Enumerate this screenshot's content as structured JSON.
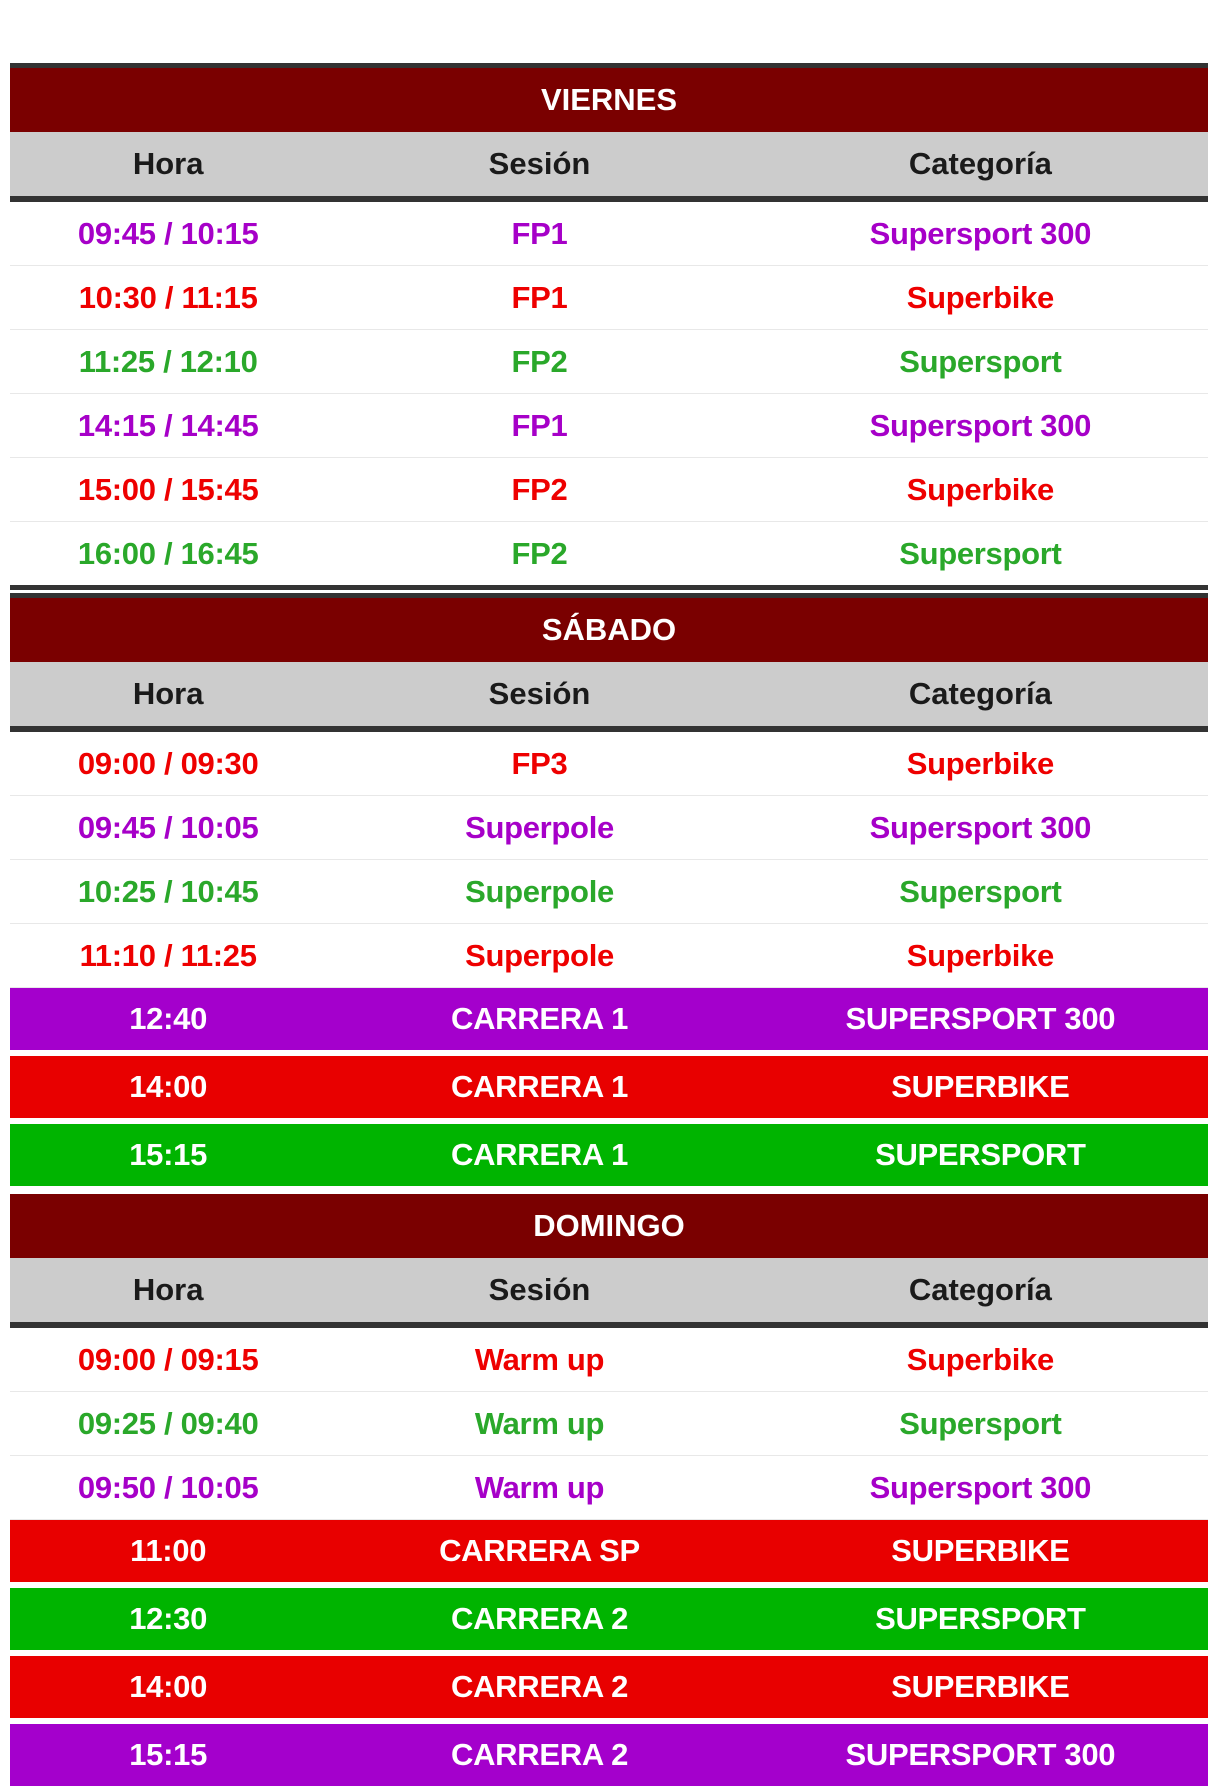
{
  "colors": {
    "day_header": "#7a0000",
    "col_header": "#cccccc",
    "purple": "#a600c8",
    "red": "#ee0000",
    "green": "#2aa82a",
    "race_purple": "#a400cc",
    "race_red": "#e80000",
    "race_green": "#00b400"
  },
  "columns": {
    "hora": "Hora",
    "sesion": "Sesión",
    "categoria": "Categoría"
  },
  "days": [
    {
      "title": "VIERNES",
      "rows": [
        {
          "hora": "09:45 / 10:15",
          "sesion": "FP1",
          "categoria": "Supersport 300",
          "color": "purple",
          "race": false
        },
        {
          "hora": "10:30 / 11:15",
          "sesion": "FP1",
          "categoria": "Superbike",
          "color": "red",
          "race": false
        },
        {
          "hora": "11:25 / 12:10",
          "sesion": "FP2",
          "categoria": "Supersport",
          "color": "green",
          "race": false
        },
        {
          "hora": "14:15 / 14:45",
          "sesion": "FP1",
          "categoria": "Supersport 300",
          "color": "purple",
          "race": false
        },
        {
          "hora": "15:00 / 15:45",
          "sesion": "FP2",
          "categoria": "Superbike",
          "color": "red",
          "race": false
        },
        {
          "hora": "16:00 / 16:45",
          "sesion": "FP2",
          "categoria": "Supersport",
          "color": "green",
          "race": false
        }
      ]
    },
    {
      "title": "SÁBADO",
      "rows": [
        {
          "hora": "09:00 / 09:30",
          "sesion": "FP3",
          "categoria": "Superbike",
          "color": "red",
          "race": false
        },
        {
          "hora": "09:45 / 10:05",
          "sesion": "Superpole",
          "categoria": "Supersport 300",
          "color": "purple",
          "race": false
        },
        {
          "hora": "10:25 / 10:45",
          "sesion": "Superpole",
          "categoria": "Supersport",
          "color": "green",
          "race": false
        },
        {
          "hora": "11:10 / 11:25",
          "sesion": "Superpole",
          "categoria": "Superbike",
          "color": "red",
          "race": false
        },
        {
          "hora": "12:40",
          "sesion": "CARRERA 1",
          "categoria": "SUPERSPORT 300",
          "color": "purple",
          "race": true
        },
        {
          "hora": "14:00",
          "sesion": "CARRERA 1",
          "categoria": "SUPERBIKE",
          "color": "red",
          "race": true
        },
        {
          "hora": "15:15",
          "sesion": "CARRERA 1",
          "categoria": "SUPERSPORT",
          "color": "green",
          "race": true
        }
      ]
    },
    {
      "title": "DOMINGO",
      "rows": [
        {
          "hora": "09:00 / 09:15",
          "sesion": "Warm up",
          "categoria": "Superbike",
          "color": "red",
          "race": false
        },
        {
          "hora": "09:25 / 09:40",
          "sesion": "Warm up",
          "categoria": "Supersport",
          "color": "green",
          "race": false
        },
        {
          "hora": "09:50 / 10:05",
          "sesion": "Warm up",
          "categoria": "Supersport 300",
          "color": "purple",
          "race": false
        },
        {
          "hora": "11:00",
          "sesion": "CARRERA SP",
          "categoria": "SUPERBIKE",
          "color": "red",
          "race": true
        },
        {
          "hora": "12:30",
          "sesion": "CARRERA 2",
          "categoria": "SUPERSPORT",
          "color": "green",
          "race": true
        },
        {
          "hora": "14:00",
          "sesion": "CARRERA 2",
          "categoria": "SUPERBIKE",
          "color": "red",
          "race": true
        },
        {
          "hora": "15:15",
          "sesion": "CARRERA 2",
          "categoria": "SUPERSPORT 300",
          "color": "purple",
          "race": true
        }
      ]
    }
  ]
}
